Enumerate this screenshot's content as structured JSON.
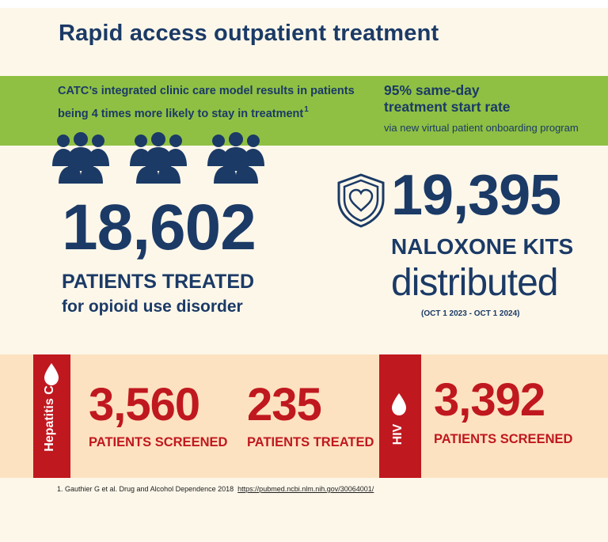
{
  "title": "Rapid access outpatient treatment",
  "green_band": {
    "left_text": "CATC’s integrated clinic care model results in patients being 4 times more likely to stay in treatment",
    "left_sup": "1",
    "right_heading_line1": "95% same-day",
    "right_heading_line2": "treatment start rate",
    "right_sub": "via new virtual patient onboarding program"
  },
  "patients_block": {
    "icon": "people-group-icon",
    "number": "18,602",
    "label": "PATIENTS TREATED",
    "sublabel": "for opioid use disorder"
  },
  "naloxone_block": {
    "icon": "shield-heart-icon",
    "number": "19,395",
    "label": "NALOXONE KITS",
    "sublabel": "distributed",
    "dates": "(OCT 1 2023 - OCT 1 2024)"
  },
  "hep_c": {
    "label": "Hepatitis C",
    "icon": "droplet-icon",
    "screened_number": "3,560",
    "screened_label": "PATIENTS SCREENED",
    "treated_number": "235",
    "treated_label": "PATIENTS TREATED"
  },
  "hiv": {
    "label": "HIV",
    "icon": "droplet-icon",
    "screened_number": "3,392",
    "screened_label": "PATIENTS SCREENED"
  },
  "footnote": {
    "text": "1.  Gauthier G et al. Drug and Alcohol Dependence 2018",
    "link": "https://pubmed.ncbi.nlm.nih.gov/30064001/"
  },
  "colors": {
    "navy": "#1b3a66",
    "green": "#8fc043",
    "red": "#c0181f",
    "peach": "#fde2c1",
    "cream": "#fdf7ea"
  }
}
